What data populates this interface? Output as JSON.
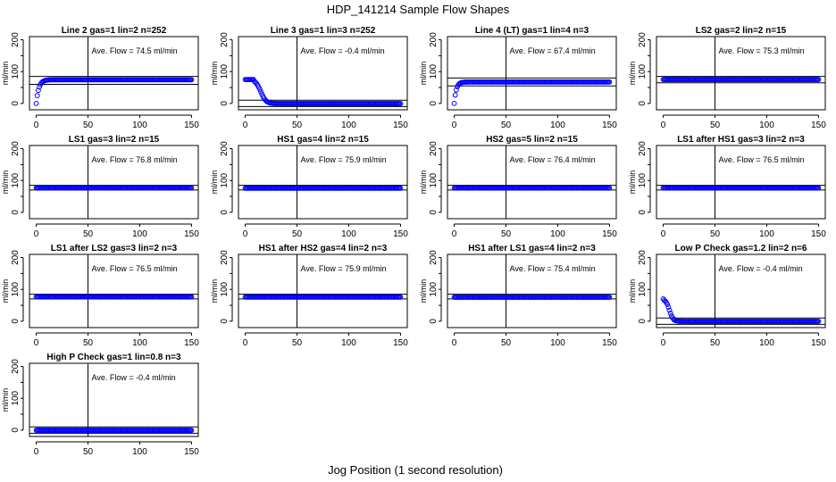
{
  "figure": {
    "title": "HDP_141214  Sample Flow Shapes",
    "xlabel": "Jog Position (1 second resolution)"
  },
  "colors": {
    "points": "#0000ff",
    "axis": "#000000"
  },
  "chart_data": [
    {
      "type": "scatter",
      "title": "Line 2 gas=1 lin=2 n=252",
      "annotation": "Ave. Flow = 74.5  ml/min",
      "xlabel": "",
      "ylabel": "ml/min",
      "xlim": [
        0,
        150
      ],
      "ylim": [
        -20,
        210
      ],
      "xticks": [
        0,
        50,
        100,
        150
      ],
      "yticks": [
        0,
        100,
        200
      ],
      "yticks_minor": [
        50,
        150
      ],
      "ref_lines": {
        "vline": 50,
        "hlines": [
          60,
          85
        ]
      },
      "series": [
        {
          "name": "flow",
          "shape": "rise",
          "start": 0,
          "plateau": 74.5,
          "tau": 2.5
        }
      ]
    },
    {
      "type": "scatter",
      "title": "Line 3 gas=1 lin=3 n=252",
      "annotation": "Ave. Flow = -0.4  ml/min",
      "xlabel": "",
      "ylabel": "ml/min",
      "xlim": [
        0,
        150
      ],
      "ylim": [
        -20,
        210
      ],
      "xticks": [
        0,
        50,
        100,
        150
      ],
      "yticks": [
        0,
        100,
        200
      ],
      "yticks_minor": [
        50,
        150
      ],
      "ref_lines": {
        "vline": 50,
        "hlines": [
          -10,
          10
        ]
      },
      "series": [
        {
          "name": "flow",
          "shape": "decay",
          "start": 75,
          "plateau": -0.4,
          "hold": 8,
          "mid": 15,
          "width": 2.5
        }
      ]
    },
    {
      "type": "scatter",
      "title": "Line 4 (LT) gas=1 lin=4 n=3",
      "annotation": "Ave. Flow = 67.4  ml/min",
      "xlabel": "",
      "ylabel": "ml/min",
      "xlim": [
        0,
        150
      ],
      "ylim": [
        -20,
        210
      ],
      "xticks": [
        0,
        50,
        100,
        150
      ],
      "yticks": [
        0,
        100,
        200
      ],
      "yticks_minor": [
        50,
        150
      ],
      "ref_lines": {
        "vline": 50,
        "hlines": [
          55,
          80
        ]
      },
      "series": [
        {
          "name": "flow",
          "shape": "rise",
          "start": 0,
          "plateau": 67.4,
          "tau": 2
        }
      ]
    },
    {
      "type": "scatter",
      "title": "LS2 gas=2 lin=2 n=15",
      "annotation": "Ave. Flow = 75.3  ml/min",
      "xlabel": "",
      "ylabel": "ml/min",
      "xlim": [
        0,
        150
      ],
      "ylim": [
        -20,
        210
      ],
      "xticks": [
        0,
        50,
        100,
        150
      ],
      "yticks": [
        0,
        100,
        200
      ],
      "yticks_minor": [
        50,
        150
      ],
      "ref_lines": {
        "vline": 50,
        "hlines": [
          65,
          85
        ]
      },
      "series": [
        {
          "name": "flow",
          "shape": "flat",
          "plateau": 75.3
        }
      ]
    },
    {
      "type": "scatter",
      "title": "LS1 gas=3 lin=2 n=15",
      "annotation": "Ave. Flow = 76.8  ml/min",
      "xlabel": "",
      "ylabel": "ml/min",
      "xlim": [
        0,
        150
      ],
      "ylim": [
        -20,
        210
      ],
      "xticks": [
        0,
        50,
        100,
        150
      ],
      "yticks": [
        0,
        100,
        200
      ],
      "yticks_minor": [
        50,
        150
      ],
      "ref_lines": {
        "vline": 50,
        "hlines": [
          70,
          85
        ]
      },
      "series": [
        {
          "name": "flow",
          "shape": "flat",
          "plateau": 76.8
        }
      ]
    },
    {
      "type": "scatter",
      "title": "HS1 gas=4 lin=2 n=15",
      "annotation": "Ave. Flow = 75.9  ml/min",
      "xlabel": "",
      "ylabel": "ml/min",
      "xlim": [
        0,
        150
      ],
      "ylim": [
        -20,
        210
      ],
      "xticks": [
        0,
        50,
        100,
        150
      ],
      "yticks": [
        0,
        100,
        200
      ],
      "yticks_minor": [
        50,
        150
      ],
      "ref_lines": {
        "vline": 50,
        "hlines": [
          70,
          85
        ]
      },
      "series": [
        {
          "name": "flow",
          "shape": "flat",
          "plateau": 75.9
        }
      ]
    },
    {
      "type": "scatter",
      "title": "HS2 gas=5 lin=2 n=15",
      "annotation": "Ave. Flow = 76.4  ml/min",
      "xlabel": "",
      "ylabel": "ml/min",
      "xlim": [
        0,
        150
      ],
      "ylim": [
        -20,
        210
      ],
      "xticks": [
        0,
        50,
        100,
        150
      ],
      "yticks": [
        0,
        100,
        200
      ],
      "yticks_minor": [
        50,
        150
      ],
      "ref_lines": {
        "vline": 50,
        "hlines": [
          70,
          85
        ]
      },
      "series": [
        {
          "name": "flow",
          "shape": "flat",
          "plateau": 76.4
        }
      ]
    },
    {
      "type": "scatter",
      "title": "LS1 after HS1 gas=3 lin=2 n=3",
      "annotation": "Ave. Flow = 76.5  ml/min",
      "xlabel": "",
      "ylabel": "ml/min",
      "xlim": [
        0,
        150
      ],
      "ylim": [
        -20,
        210
      ],
      "xticks": [
        0,
        50,
        100,
        150
      ],
      "yticks": [
        0,
        100,
        200
      ],
      "yticks_minor": [
        50,
        150
      ],
      "ref_lines": {
        "vline": 50,
        "hlines": [
          70,
          85
        ]
      },
      "series": [
        {
          "name": "flow",
          "shape": "flat",
          "plateau": 76.5
        }
      ]
    },
    {
      "type": "scatter",
      "title": "LS1 after LS2 gas=3 lin=2 n=3",
      "annotation": "Ave. Flow = 76.5  ml/min",
      "xlabel": "",
      "ylabel": "ml/min",
      "xlim": [
        0,
        150
      ],
      "ylim": [
        -20,
        210
      ],
      "xticks": [
        0,
        50,
        100,
        150
      ],
      "yticks": [
        0,
        100,
        200
      ],
      "yticks_minor": [
        50,
        150
      ],
      "ref_lines": {
        "vline": 50,
        "hlines": [
          70,
          85
        ]
      },
      "series": [
        {
          "name": "flow",
          "shape": "flat",
          "plateau": 76.5
        }
      ]
    },
    {
      "type": "scatter",
      "title": "HS1 after HS2 gas=4 lin=2 n=3",
      "annotation": "Ave. Flow = 75.9  ml/min",
      "xlabel": "",
      "ylabel": "ml/min",
      "xlim": [
        0,
        150
      ],
      "ylim": [
        -20,
        210
      ],
      "xticks": [
        0,
        50,
        100,
        150
      ],
      "yticks": [
        0,
        100,
        200
      ],
      "yticks_minor": [
        50,
        150
      ],
      "ref_lines": {
        "vline": 50,
        "hlines": [
          70,
          85
        ]
      },
      "series": [
        {
          "name": "flow",
          "shape": "flat",
          "plateau": 75.9
        }
      ]
    },
    {
      "type": "scatter",
      "title": "HS1 after LS1 gas=4 lin=2 n=3",
      "annotation": "Ave. Flow = 75.4  ml/min",
      "xlabel": "",
      "ylabel": "ml/min",
      "xlim": [
        0,
        150
      ],
      "ylim": [
        -20,
        210
      ],
      "xticks": [
        0,
        50,
        100,
        150
      ],
      "yticks": [
        0,
        100,
        200
      ],
      "yticks_minor": [
        50,
        150
      ],
      "ref_lines": {
        "vline": 50,
        "hlines": [
          70,
          85
        ]
      },
      "series": [
        {
          "name": "flow",
          "shape": "flat",
          "plateau": 75.4
        }
      ]
    },
    {
      "type": "scatter",
      "title": "Low P Check gas=1.2 lin=2 n=6",
      "annotation": "Ave. Flow = -0.4  ml/min",
      "xlabel": "",
      "ylabel": "ml/min",
      "xlim": [
        0,
        150
      ],
      "ylim": [
        -20,
        210
      ],
      "xticks": [
        0,
        50,
        100,
        150
      ],
      "yticks": [
        0,
        100,
        200
      ],
      "yticks_minor": [
        50,
        150
      ],
      "ref_lines": {
        "vline": 50,
        "hlines": [
          -10,
          10
        ]
      },
      "series": [
        {
          "name": "flow",
          "shape": "decay",
          "start": 70,
          "plateau": -0.4,
          "hold": 0,
          "mid": 6,
          "width": 1.8
        }
      ]
    },
    {
      "type": "scatter",
      "title": "High P Check gas=1 lin=0.8 n=3",
      "annotation": "Ave. Flow = -0.4  ml/min",
      "xlabel": "",
      "ylabel": "ml/min",
      "xlim": [
        0,
        150
      ],
      "ylim": [
        -20,
        210
      ],
      "xticks": [
        0,
        50,
        100,
        150
      ],
      "yticks": [
        0,
        100,
        200
      ],
      "yticks_minor": [
        50,
        150
      ],
      "ref_lines": {
        "vline": 50,
        "hlines": [
          -10,
          10
        ]
      },
      "series": [
        {
          "name": "flow",
          "shape": "flat",
          "plateau": -0.4
        }
      ]
    }
  ]
}
